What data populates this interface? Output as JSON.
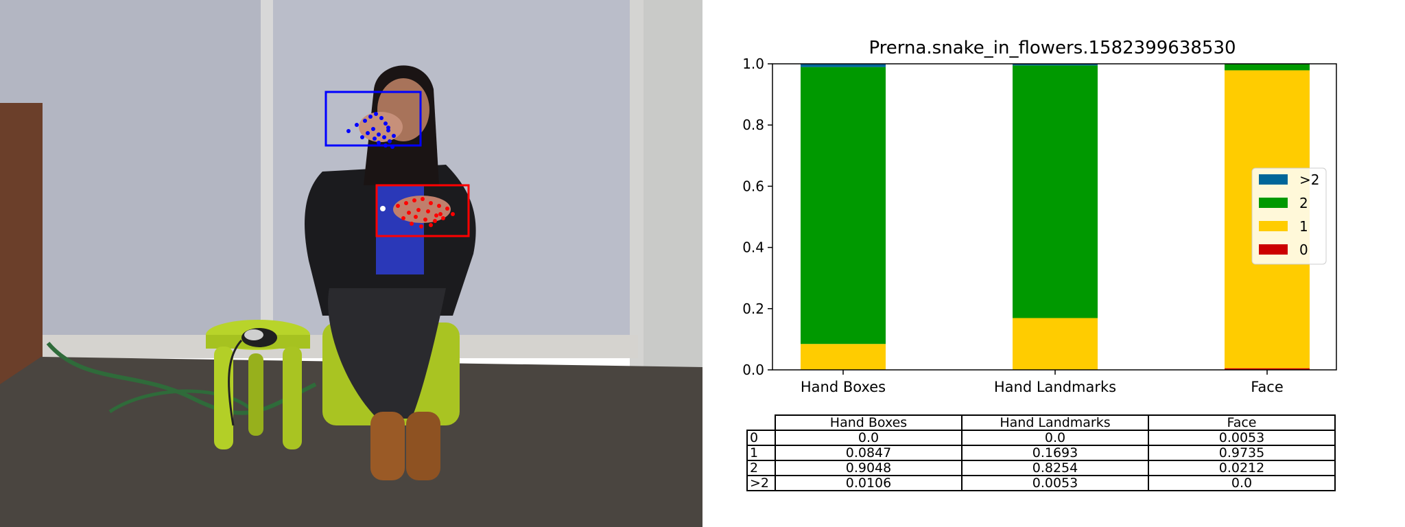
{
  "chart_data": {
    "type": "bar",
    "stacked": true,
    "title": "Prerna.snake_in_flowers.1582399638530",
    "categories": [
      "Hand Boxes",
      "Hand Landmarks",
      "Face"
    ],
    "series": [
      {
        "name": "0",
        "color": "#cc0000",
        "values": [
          0.0,
          0.0,
          0.0053
        ]
      },
      {
        "name": "1",
        "color": "#ffcc00",
        "values": [
          0.0847,
          0.1693,
          0.9735
        ]
      },
      {
        "name": "2",
        "color": "#009900",
        "values": [
          0.9048,
          0.8254,
          0.0212
        ]
      },
      {
        "name": ">2",
        "color": "#006699",
        "values": [
          0.0106,
          0.0053,
          0.0
        ]
      }
    ],
    "ylim": [
      0,
      1.0
    ],
    "yticks": [
      "0.0",
      "0.2",
      "0.4",
      "0.6",
      "0.8",
      "1.0"
    ],
    "grid": false,
    "legend_position": "center-right",
    "legend_order": [
      ">2",
      "2",
      "1",
      "0"
    ]
  },
  "table": {
    "columns": [
      "Hand Boxes",
      "Hand Landmarks",
      "Face"
    ],
    "rows": [
      {
        "label": "0",
        "cells": [
          "0.0",
          "0.0",
          "0.0053"
        ]
      },
      {
        "label": "1",
        "cells": [
          "0.0847",
          "0.1693",
          "0.9735"
        ]
      },
      {
        "label": "2",
        "cells": [
          "0.9048",
          "0.8254",
          "0.0212"
        ]
      },
      {
        "label": ">2",
        "cells": [
          "0.0106",
          "0.0053",
          "0.0"
        ]
      }
    ]
  },
  "photo": {
    "description_icon": "video-frame",
    "box_colors": {
      "left_hand": "#0000ff",
      "right_hand": "#ff0000"
    }
  }
}
